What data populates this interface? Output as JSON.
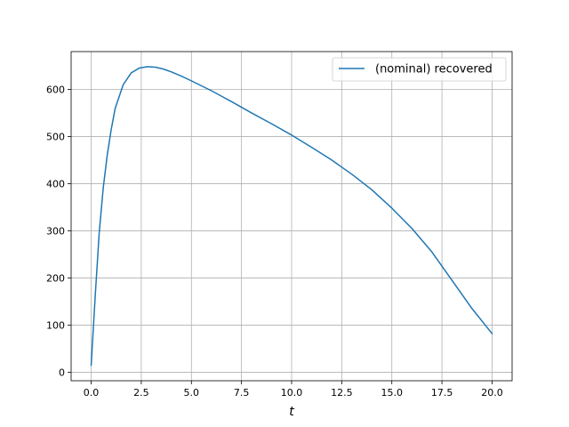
{
  "chart_data": {
    "type": "line",
    "title": "",
    "xlabel": "t",
    "ylabel": "",
    "xlim": [
      -1.0,
      21.0
    ],
    "ylim": [
      -18,
      680
    ],
    "grid": true,
    "legend_position": "upper right",
    "x_ticks": [
      0.0,
      2.5,
      5.0,
      7.5,
      10.0,
      12.5,
      15.0,
      17.5,
      20.0
    ],
    "x_tick_labels": [
      "0.0",
      "2.5",
      "5.0",
      "7.5",
      "10.0",
      "12.5",
      "15.0",
      "17.5",
      "20.0"
    ],
    "y_ticks": [
      0,
      100,
      200,
      300,
      400,
      500,
      600
    ],
    "y_tick_labels": [
      "0",
      "100",
      "200",
      "300",
      "400",
      "500",
      "600"
    ],
    "series": [
      {
        "name": "(nominal) recovered",
        "color": "#1f77b4",
        "x": [
          0.0,
          0.2,
          0.4,
          0.6,
          0.8,
          1.0,
          1.2,
          1.6,
          2.0,
          2.4,
          2.8,
          3.2,
          3.6,
          4.0,
          4.5,
          5.0,
          6.0,
          7.0,
          8.0,
          9.0,
          10.0,
          11.0,
          12.0,
          13.0,
          14.0,
          15.0,
          16.0,
          17.0,
          18.0,
          19.0,
          20.0
        ],
        "y": [
          15,
          160,
          295,
          390,
          460,
          515,
          560,
          610,
          635,
          645,
          648,
          647,
          643,
          637,
          628,
          618,
          597,
          574,
          550,
          527,
          503,
          477,
          450,
          420,
          387,
          348,
          305,
          255,
          195,
          135,
          82
        ]
      }
    ]
  }
}
